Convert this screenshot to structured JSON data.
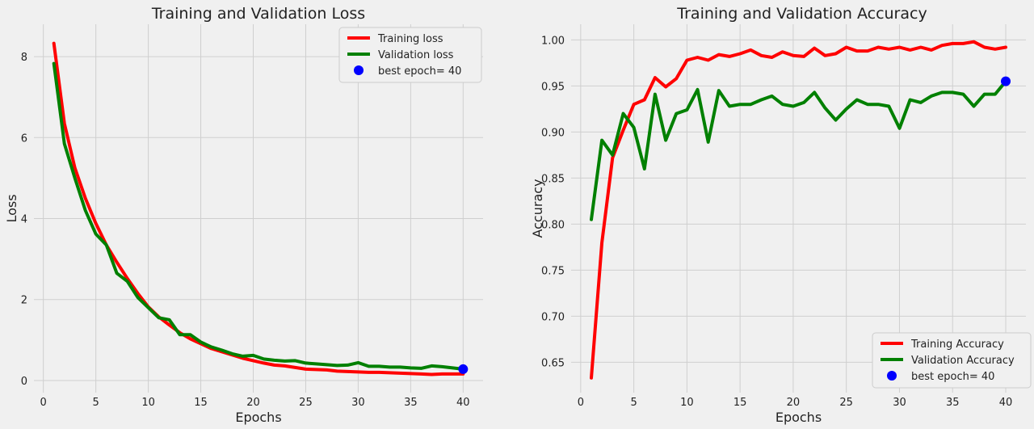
{
  "chart_data": [
    {
      "type": "line",
      "title": "Training and Validation Loss",
      "xlabel": "Epochs",
      "ylabel": "Loss",
      "xlim": [
        -0.9,
        41.9
      ],
      "ylim": [
        -0.3,
        8.8
      ],
      "xticks": [
        0,
        5,
        10,
        15,
        20,
        25,
        30,
        35,
        40
      ],
      "yticks": [
        0,
        2,
        4,
        6,
        8
      ],
      "ytick_labels": [
        "0",
        "2",
        "4",
        "6",
        "8"
      ],
      "grid": true,
      "legend_position": "top-right",
      "x": [
        1,
        2,
        3,
        4,
        5,
        6,
        7,
        8,
        9,
        10,
        11,
        12,
        13,
        14,
        15,
        16,
        17,
        18,
        19,
        20,
        21,
        22,
        23,
        24,
        25,
        26,
        27,
        28,
        29,
        30,
        31,
        32,
        33,
        34,
        35,
        36,
        37,
        38,
        39,
        40
      ],
      "series": [
        {
          "name": "Training loss",
          "color": "#ff0000",
          "values": [
            8.33,
            6.35,
            5.25,
            4.5,
            3.88,
            3.35,
            2.92,
            2.52,
            2.15,
            1.82,
            1.57,
            1.37,
            1.18,
            1.03,
            0.91,
            0.79,
            0.71,
            0.63,
            0.55,
            0.49,
            0.43,
            0.38,
            0.36,
            0.32,
            0.28,
            0.27,
            0.26,
            0.23,
            0.22,
            0.21,
            0.2,
            0.2,
            0.19,
            0.18,
            0.17,
            0.16,
            0.15,
            0.16,
            0.16,
            0.16
          ]
        },
        {
          "name": "Validation loss",
          "color": "#008000",
          "values": [
            7.83,
            5.85,
            5.0,
            4.2,
            3.62,
            3.35,
            2.65,
            2.45,
            2.05,
            1.8,
            1.55,
            1.5,
            1.13,
            1.13,
            0.95,
            0.83,
            0.75,
            0.66,
            0.6,
            0.62,
            0.53,
            0.5,
            0.48,
            0.49,
            0.43,
            0.41,
            0.39,
            0.37,
            0.38,
            0.44,
            0.35,
            0.35,
            0.33,
            0.33,
            0.31,
            0.3,
            0.36,
            0.34,
            0.31,
            0.28
          ]
        }
      ],
      "best_epoch": {
        "label": "best epoch= 40",
        "x": 40,
        "y": 0.28,
        "color": "#0000ff"
      }
    },
    {
      "type": "line",
      "title": "Training and Validation Accuracy",
      "xlabel": "Epochs",
      "ylabel": "Accuracy",
      "xlim": [
        -0.9,
        41.9
      ],
      "ylim": [
        0.617,
        1.017
      ],
      "xticks": [
        0,
        5,
        10,
        15,
        20,
        25,
        30,
        35,
        40
      ],
      "yticks": [
        0.65,
        0.7,
        0.75,
        0.8,
        0.85,
        0.9,
        0.95,
        1.0
      ],
      "ytick_labels": [
        "0.65",
        "0.70",
        "0.75",
        "0.80",
        "0.85",
        "0.90",
        "0.95",
        "1.00"
      ],
      "grid": true,
      "legend_position": "bottom-right",
      "x": [
        1,
        2,
        3,
        4,
        5,
        6,
        7,
        8,
        9,
        10,
        11,
        12,
        13,
        14,
        15,
        16,
        17,
        18,
        19,
        20,
        21,
        22,
        23,
        24,
        25,
        26,
        27,
        28,
        29,
        30,
        31,
        32,
        33,
        34,
        35,
        36,
        37,
        38,
        39,
        40
      ],
      "series": [
        {
          "name": "Training Accuracy",
          "color": "#ff0000",
          "values": [
            0.633,
            0.78,
            0.872,
            0.902,
            0.93,
            0.935,
            0.959,
            0.949,
            0.958,
            0.978,
            0.981,
            0.978,
            0.984,
            0.982,
            0.985,
            0.989,
            0.983,
            0.981,
            0.987,
            0.983,
            0.982,
            0.991,
            0.983,
            0.985,
            0.992,
            0.988,
            0.988,
            0.992,
            0.99,
            0.992,
            0.989,
            0.992,
            0.989,
            0.994,
            0.996,
            0.996,
            0.998,
            0.992,
            0.99,
            0.992
          ]
        },
        {
          "name": "Validation Accuracy",
          "color": "#008000",
          "values": [
            0.805,
            0.891,
            0.875,
            0.92,
            0.905,
            0.86,
            0.941,
            0.891,
            0.92,
            0.924,
            0.946,
            0.889,
            0.945,
            0.928,
            0.93,
            0.93,
            0.935,
            0.939,
            0.93,
            0.928,
            0.932,
            0.943,
            0.926,
            0.913,
            0.925,
            0.935,
            0.93,
            0.93,
            0.928,
            0.904,
            0.935,
            0.932,
            0.939,
            0.943,
            0.943,
            0.941,
            0.928,
            0.941,
            0.941,
            0.955
          ]
        }
      ],
      "best_epoch": {
        "label": "best epoch= 40",
        "x": 40,
        "y": 0.955,
        "color": "#0000ff"
      }
    }
  ]
}
